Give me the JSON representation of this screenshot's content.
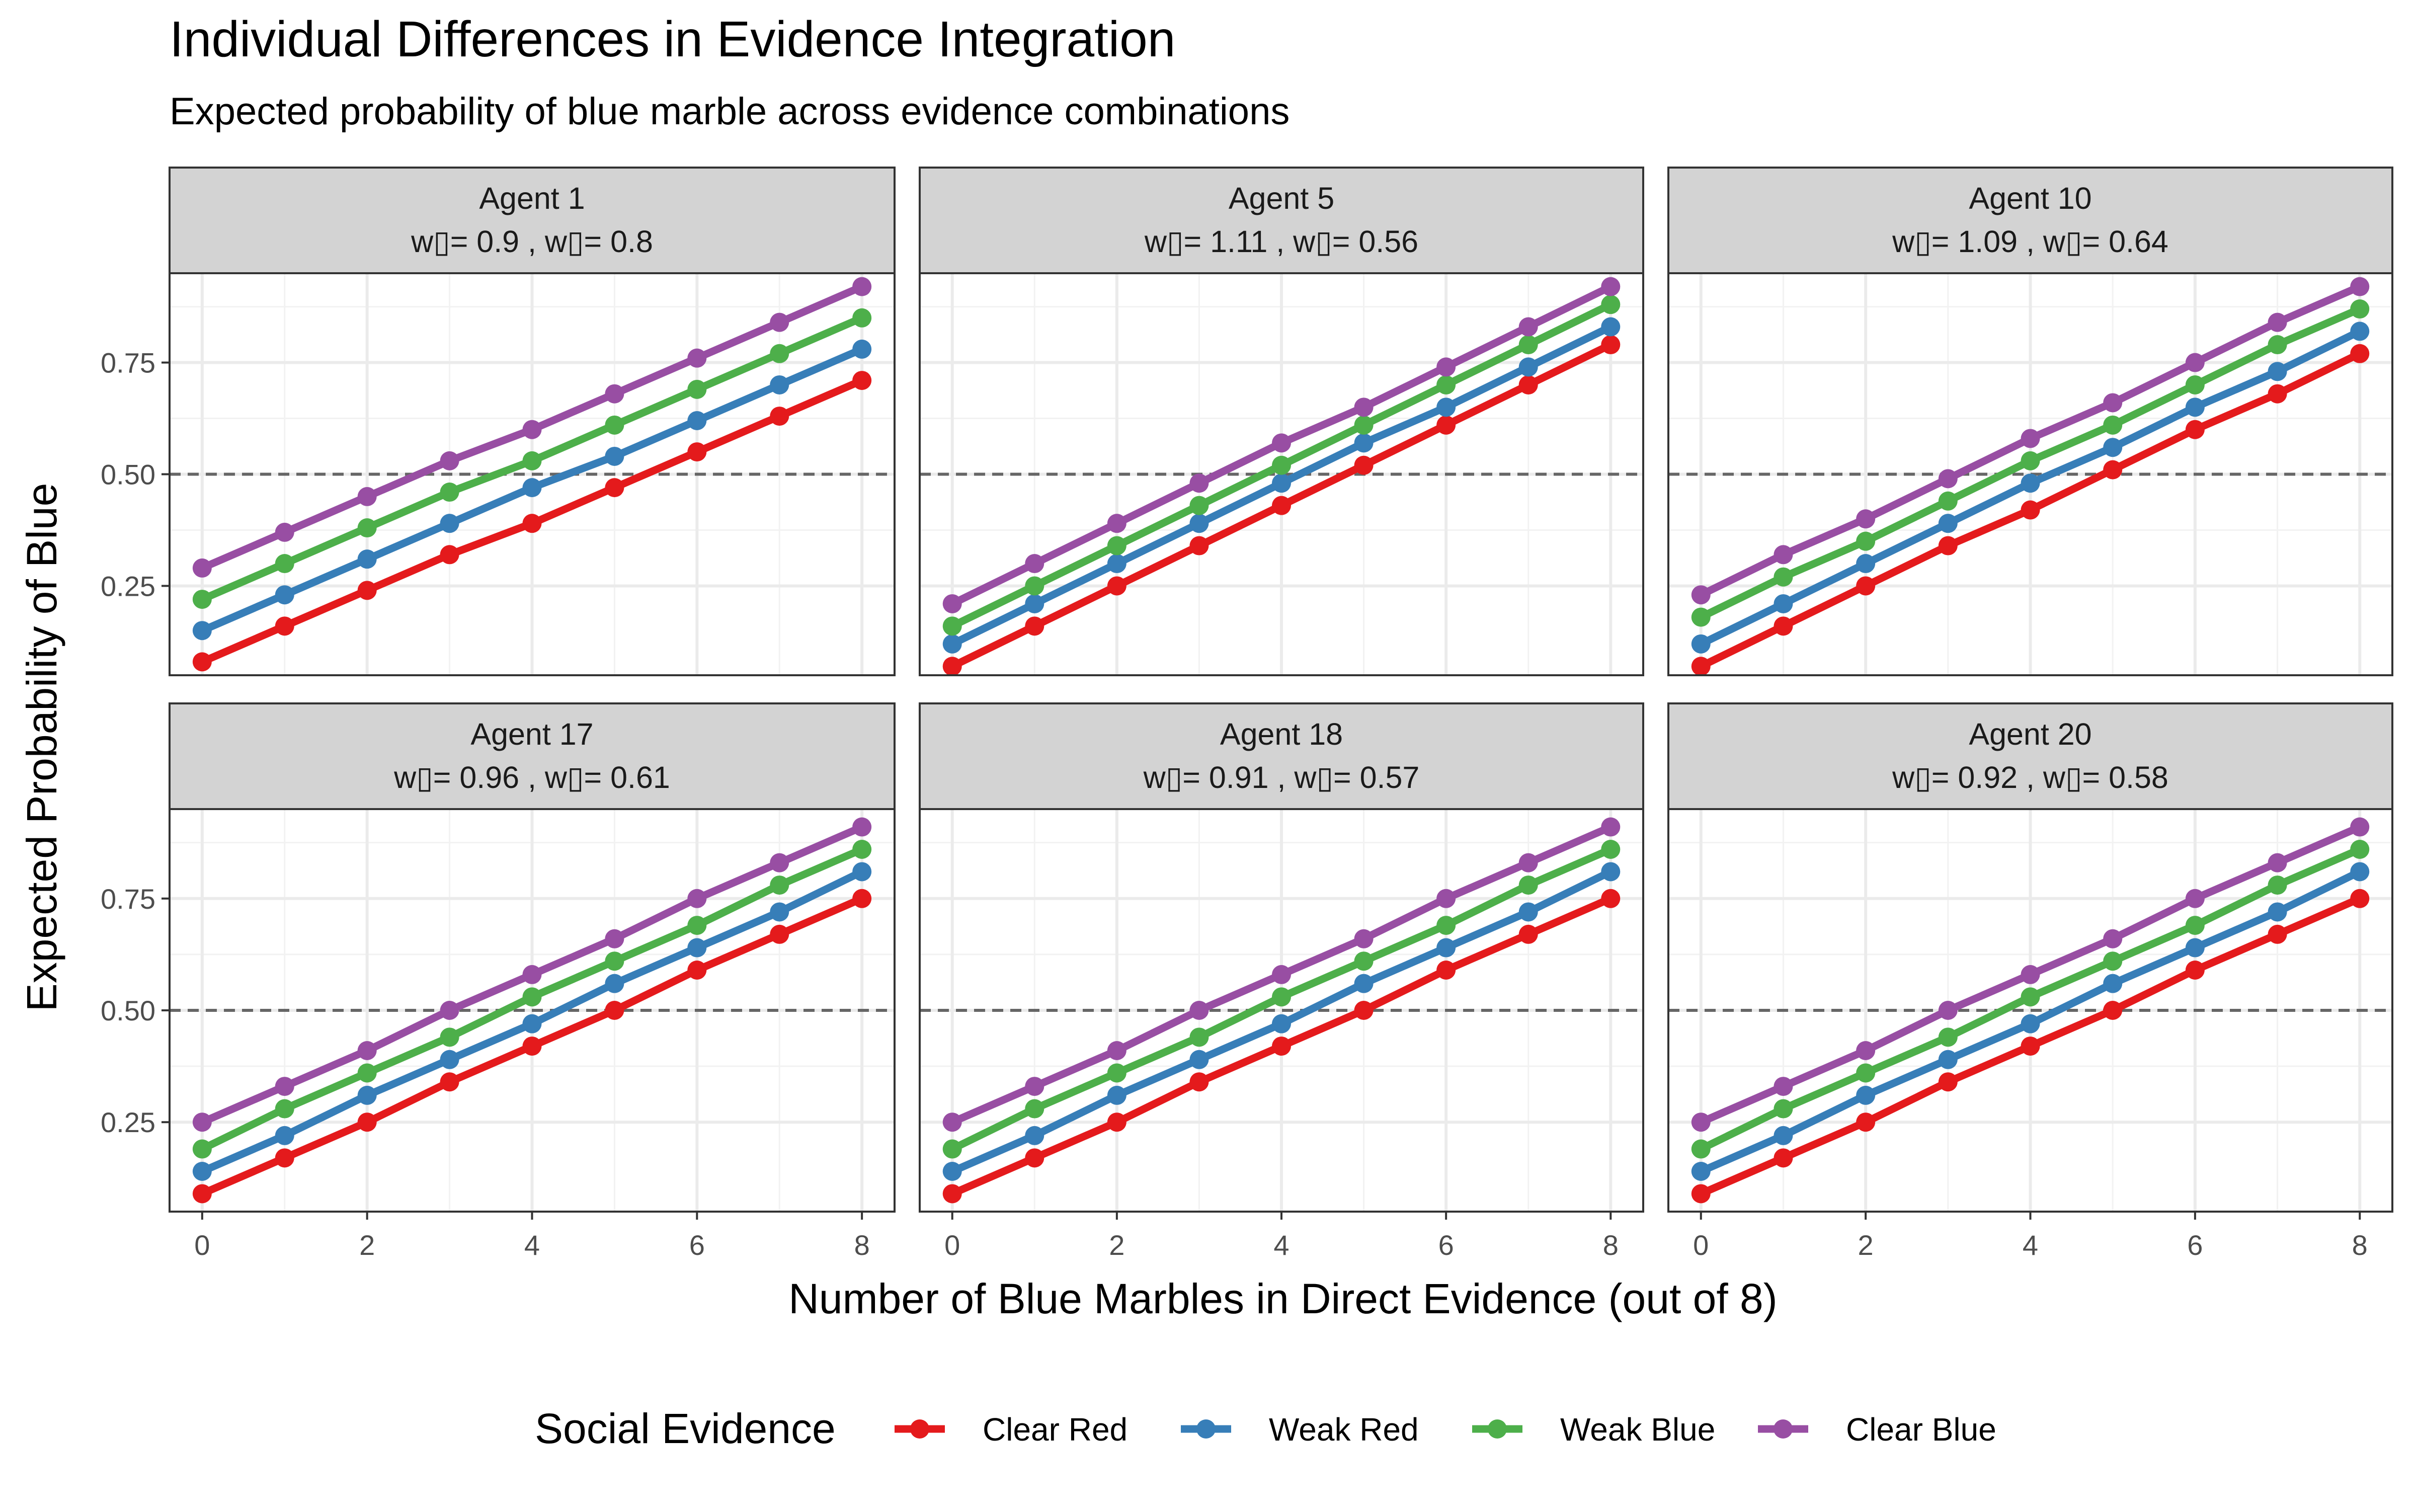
{
  "chart_data": {
    "type": "line",
    "title": "Individual Differences in Evidence Integration",
    "subtitle": "Expected probability of blue marble across evidence combinations",
    "xlabel": "Number of Blue Marbles in Direct Evidence (out of 8)",
    "ylabel": "Expected Probability of Blue",
    "x": [
      0,
      1,
      2,
      3,
      4,
      5,
      6,
      7,
      8
    ],
    "x_ticks": [
      "0",
      "2",
      "4",
      "6",
      "8"
    ],
    "y_ticks": [
      "0.25",
      "0.50",
      "0.75"
    ],
    "ylim": [
      0.05,
      0.95
    ],
    "reference_line": 0.5,
    "grid": true,
    "legend": {
      "title": "Social Evidence",
      "placement": "bottom",
      "entries": [
        "Clear Red",
        "Weak Red",
        "Weak Blue",
        "Clear Blue"
      ]
    },
    "series_colors": {
      "Clear Red": "#E41A1C",
      "Weak Red": "#377EB8",
      "Weak Blue": "#4DAF4A",
      "Clear Blue": "#984EA3"
    },
    "panels": [
      {
        "name": "Agent 1",
        "weights": "w▯= 0.9 , w▯= 0.8",
        "series": [
          {
            "name": "Clear Red",
            "values": [
              0.08,
              0.16,
              0.24,
              0.32,
              0.39,
              0.47,
              0.55,
              0.63,
              0.71
            ]
          },
          {
            "name": "Weak Red",
            "values": [
              0.15,
              0.23,
              0.31,
              0.39,
              0.47,
              0.54,
              0.62,
              0.7,
              0.78
            ]
          },
          {
            "name": "Weak Blue",
            "values": [
              0.22,
              0.3,
              0.38,
              0.46,
              0.53,
              0.61,
              0.69,
              0.77,
              0.85
            ]
          },
          {
            "name": "Clear Blue",
            "values": [
              0.29,
              0.37,
              0.45,
              0.53,
              0.6,
              0.68,
              0.76,
              0.84,
              0.92
            ]
          }
        ]
      },
      {
        "name": "Agent 5",
        "weights": "w▯= 1.11 , w▯= 0.56",
        "series": [
          {
            "name": "Clear Red",
            "values": [
              0.07,
              0.16,
              0.25,
              0.34,
              0.43,
              0.52,
              0.61,
              0.7,
              0.79
            ]
          },
          {
            "name": "Weak Red",
            "values": [
              0.12,
              0.21,
              0.3,
              0.39,
              0.48,
              0.57,
              0.65,
              0.74,
              0.83
            ]
          },
          {
            "name": "Weak Blue",
            "values": [
              0.16,
              0.25,
              0.34,
              0.43,
              0.52,
              0.61,
              0.7,
              0.79,
              0.88
            ]
          },
          {
            "name": "Clear Blue",
            "values": [
              0.21,
              0.3,
              0.39,
              0.48,
              0.57,
              0.65,
              0.74,
              0.83,
              0.92
            ]
          }
        ]
      },
      {
        "name": "Agent 10",
        "weights": "w▯= 1.09 , w▯= 0.64",
        "series": [
          {
            "name": "Clear Red",
            "values": [
              0.07,
              0.16,
              0.25,
              0.34,
              0.42,
              0.51,
              0.6,
              0.68,
              0.77
            ]
          },
          {
            "name": "Weak Red",
            "values": [
              0.12,
              0.21,
              0.3,
              0.39,
              0.48,
              0.56,
              0.65,
              0.73,
              0.82
            ]
          },
          {
            "name": "Weak Blue",
            "values": [
              0.18,
              0.27,
              0.35,
              0.44,
              0.53,
              0.61,
              0.7,
              0.79,
              0.87
            ]
          },
          {
            "name": "Clear Blue",
            "values": [
              0.23,
              0.32,
              0.4,
              0.49,
              0.58,
              0.66,
              0.75,
              0.84,
              0.92
            ]
          }
        ]
      },
      {
        "name": "Agent 17",
        "weights": "w▯= 0.96 , w▯= 0.61",
        "series": [
          {
            "name": "Clear Red",
            "values": [
              0.09,
              0.17,
              0.25,
              0.34,
              0.42,
              0.5,
              0.59,
              0.67,
              0.75
            ]
          },
          {
            "name": "Weak Red",
            "values": [
              0.14,
              0.22,
              0.31,
              0.39,
              0.47,
              0.56,
              0.64,
              0.72,
              0.81
            ]
          },
          {
            "name": "Weak Blue",
            "values": [
              0.19,
              0.28,
              0.36,
              0.44,
              0.53,
              0.61,
              0.69,
              0.78,
              0.86
            ]
          },
          {
            "name": "Clear Blue",
            "values": [
              0.25,
              0.33,
              0.41,
              0.5,
              0.58,
              0.66,
              0.75,
              0.83,
              0.91
            ]
          }
        ]
      },
      {
        "name": "Agent 18",
        "weights": "w▯= 0.91 , w▯= 0.57",
        "series": [
          {
            "name": "Clear Red",
            "values": [
              0.09,
              0.17,
              0.25,
              0.34,
              0.42,
              0.5,
              0.59,
              0.67,
              0.75
            ]
          },
          {
            "name": "Weak Red",
            "values": [
              0.14,
              0.22,
              0.31,
              0.39,
              0.47,
              0.56,
              0.64,
              0.72,
              0.81
            ]
          },
          {
            "name": "Weak Blue",
            "values": [
              0.19,
              0.28,
              0.36,
              0.44,
              0.53,
              0.61,
              0.69,
              0.78,
              0.86
            ]
          },
          {
            "name": "Clear Blue",
            "values": [
              0.25,
              0.33,
              0.41,
              0.5,
              0.58,
              0.66,
              0.75,
              0.83,
              0.91
            ]
          }
        ]
      },
      {
        "name": "Agent 20",
        "weights": "w▯= 0.92 , w▯= 0.58",
        "series": [
          {
            "name": "Clear Red",
            "values": [
              0.09,
              0.17,
              0.25,
              0.34,
              0.42,
              0.5,
              0.59,
              0.67,
              0.75
            ]
          },
          {
            "name": "Weak Red",
            "values": [
              0.14,
              0.22,
              0.31,
              0.39,
              0.47,
              0.56,
              0.64,
              0.72,
              0.81
            ]
          },
          {
            "name": "Weak Blue",
            "values": [
              0.19,
              0.28,
              0.36,
              0.44,
              0.53,
              0.61,
              0.69,
              0.78,
              0.86
            ]
          },
          {
            "name": "Clear Blue",
            "values": [
              0.25,
              0.33,
              0.41,
              0.5,
              0.58,
              0.66,
              0.75,
              0.83,
              0.91
            ]
          }
        ]
      }
    ]
  }
}
